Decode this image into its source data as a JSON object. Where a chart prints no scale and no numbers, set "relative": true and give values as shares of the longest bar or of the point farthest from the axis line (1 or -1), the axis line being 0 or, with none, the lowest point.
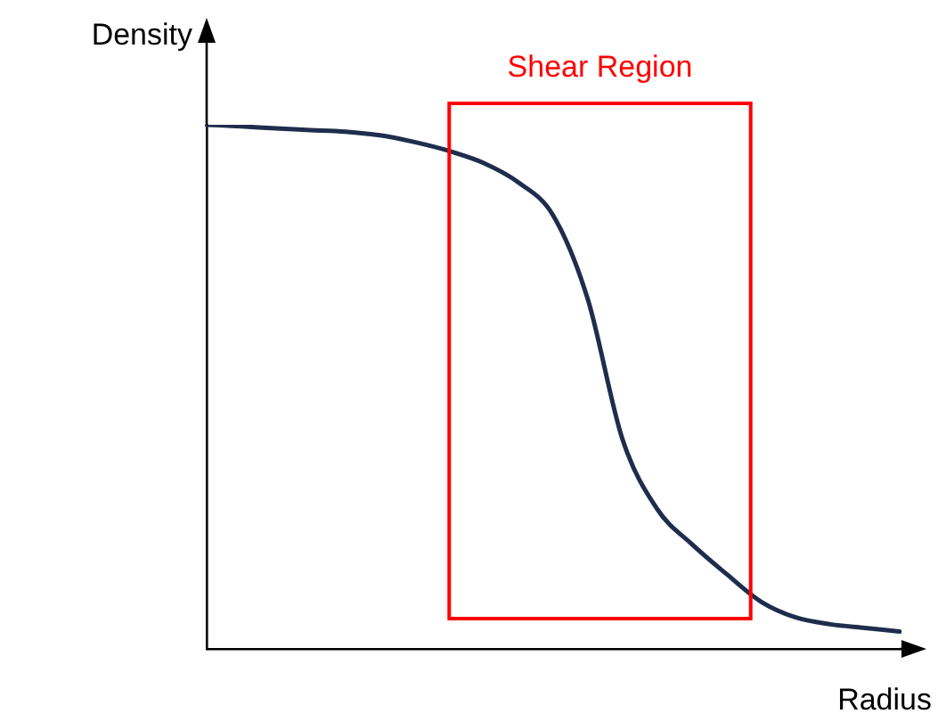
{
  "chart_data": {
    "type": "line",
    "relative": true,
    "xlabel": "Radius",
    "ylabel": "Density",
    "legend": false,
    "marker": "none",
    "line_style": "solid",
    "categories": [
      null,
      null,
      null,
      null,
      null,
      null,
      null,
      null,
      null,
      null,
      null,
      null,
      null,
      null,
      null,
      null,
      null,
      null,
      null,
      null,
      null
    ],
    "series": [
      {
        "color": "#1f2d4d",
        "values": [
          1.0,
          0.997,
          0.993,
          0.99,
          0.987,
          0.98,
          0.967,
          0.95,
          0.927,
          0.89,
          0.827,
          0.667,
          0.4,
          0.267,
          0.2,
          0.143,
          0.09,
          0.06,
          0.047,
          0.04,
          0.033
        ]
      }
    ],
    "annotations": [
      "Shear Region"
    ]
  }
}
